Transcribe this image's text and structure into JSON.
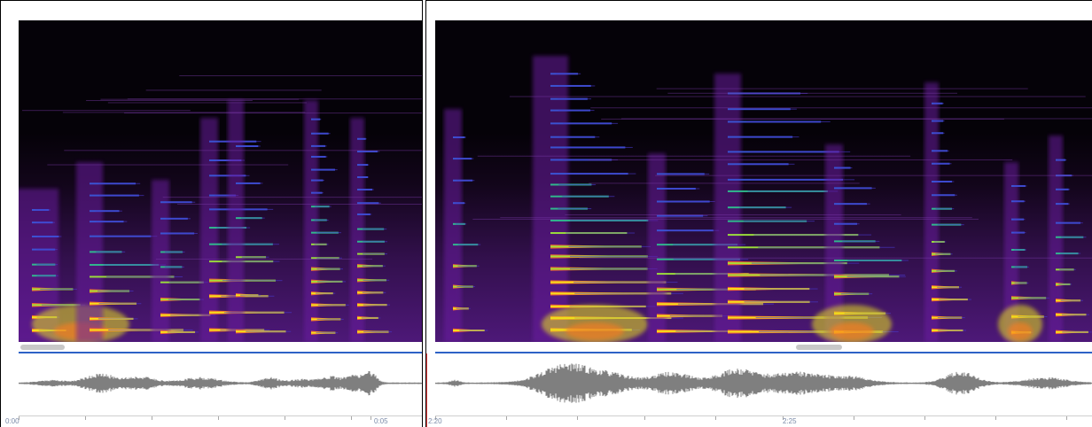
{
  "panels": {
    "left": {
      "time_start": "0:00",
      "time_end": "0:05"
    },
    "right": {
      "time_start": "2:20",
      "time_mid": "2:25"
    }
  },
  "colors": {
    "spectrogram_background": "#050208",
    "waveform": "#7f7f7f",
    "divider_accent": "#2d62c6",
    "scroll_thumb": "#c8c8c8"
  }
}
